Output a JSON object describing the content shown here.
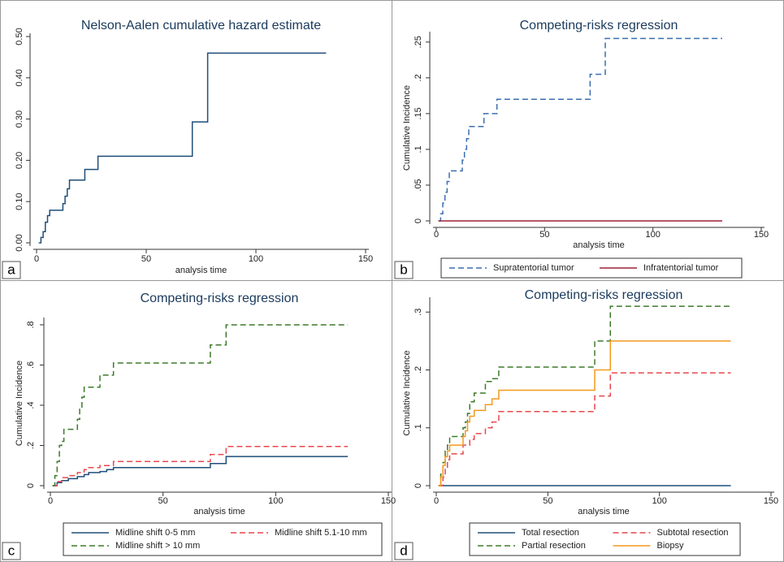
{
  "chart_data": [
    {
      "type": "line",
      "step": "post",
      "title": "Nelson-Aalen cumulative hazard estimate",
      "x_label": "analysis time",
      "panel_label": "a",
      "xlim": [
        0,
        150
      ],
      "xticks": [
        0,
        50,
        100,
        150
      ],
      "ylim": [
        0,
        0.5
      ],
      "yticks": [
        {
          "value": 0,
          "label": "0.00"
        },
        {
          "value": 0.1,
          "label": "0.10"
        },
        {
          "value": 0.2,
          "label": "0.20"
        },
        {
          "value": 0.3,
          "label": "0.30"
        },
        {
          "value": 0.4,
          "label": "0.40"
        },
        {
          "value": 0.5,
          "label": "0.50"
        }
      ],
      "legend": false,
      "series": [
        {
          "color": "#1f4e79",
          "dash": "solid",
          "x": [
            1,
            2,
            3,
            4,
            5,
            6,
            12,
            13,
            14,
            15,
            17,
            22,
            25,
            28,
            71,
            78,
            132
          ],
          "values": [
            0,
            0.013,
            0.027,
            0.05,
            0.066,
            0.079,
            0.095,
            0.113,
            0.131,
            0.152,
            0.152,
            0.178,
            0.178,
            0.21,
            0.293,
            0.46,
            0.46
          ]
        }
      ]
    },
    {
      "type": "line",
      "step": "post",
      "title": "Competing-risks regression",
      "x_label": "analysis time",
      "y_label": "Cumulative Incidence",
      "panel_label": "b",
      "xlim": [
        0,
        150
      ],
      "xticks": [
        0,
        50,
        100,
        150
      ],
      "ylim": [
        0,
        0.26
      ],
      "yticks": [
        0,
        {
          "value": 0.05,
          "label": ".05"
        },
        {
          "value": 0.1,
          "label": ".1"
        },
        {
          "value": 0.15,
          "label": ".15"
        },
        {
          "value": 0.2,
          "label": ".2"
        },
        {
          "value": 0.25,
          "label": ".25"
        }
      ],
      "legend": "bottom",
      "series": [
        {
          "name": "Supratentorial tumor",
          "color": "#3a6fb0",
          "dash": "dashed",
          "x": [
            1,
            2,
            3,
            4,
            5,
            6,
            12,
            13,
            14,
            15,
            17,
            22,
            25,
            28,
            71,
            74,
            78,
            132
          ],
          "values": [
            0,
            0.01,
            0.025,
            0.04,
            0.055,
            0.07,
            0.085,
            0.1,
            0.115,
            0.132,
            0.132,
            0.15,
            0.15,
            0.17,
            0.205,
            0.205,
            0.255,
            0.255
          ]
        },
        {
          "name": "Infratentorial tumor",
          "color": "#9b2335",
          "dash": "solid",
          "x": [
            1,
            132
          ],
          "values": [
            0,
            0
          ]
        }
      ]
    },
    {
      "type": "line",
      "step": "post",
      "title": "Competing-risks regression",
      "x_label": "analysis time",
      "y_label": "Cumulative Incidence",
      "panel_label": "c",
      "xlim": [
        0,
        150
      ],
      "xticks": [
        0,
        50,
        100,
        150
      ],
      "ylim": [
        0,
        0.82
      ],
      "yticks": [
        0,
        {
          "value": 0.2,
          "label": ".2"
        },
        {
          "value": 0.4,
          "label": ".4"
        },
        {
          "value": 0.6,
          "label": ".6"
        },
        {
          "value": 0.8,
          "label": ".8"
        }
      ],
      "legend": "bottom",
      "series": [
        {
          "name": "Midline shift 0-5 mm",
          "color": "#1f4e79",
          "dash": "solid",
          "x": [
            1,
            3,
            5,
            8,
            12,
            15,
            17,
            22,
            25,
            28,
            71,
            78,
            132
          ],
          "values": [
            0,
            0.015,
            0.025,
            0.035,
            0.045,
            0.055,
            0.065,
            0.07,
            0.08,
            0.09,
            0.11,
            0.145,
            0.145
          ]
        },
        {
          "name": "Midline shift 5.1-10 mm",
          "color": "#e8474c",
          "dash": "dashed",
          "x": [
            1,
            3,
            5,
            8,
            12,
            15,
            17,
            22,
            25,
            28,
            71,
            78,
            132
          ],
          "values": [
            0,
            0.02,
            0.04,
            0.05,
            0.065,
            0.08,
            0.09,
            0.1,
            0.1,
            0.12,
            0.155,
            0.195,
            0.195
          ]
        },
        {
          "name": "Midline shift > 10 mm",
          "color": "#3d7a2a",
          "dash": "dashed",
          "x": [
            1,
            2,
            3,
            4,
            5,
            6,
            12,
            13,
            14,
            15,
            17,
            22,
            25,
            28,
            71,
            74,
            78,
            132
          ],
          "values": [
            0,
            0.05,
            0.12,
            0.2,
            0.22,
            0.28,
            0.33,
            0.38,
            0.44,
            0.49,
            0.49,
            0.55,
            0.55,
            0.61,
            0.7,
            0.7,
            0.8,
            0.8
          ]
        }
      ]
    },
    {
      "type": "line",
      "step": "post",
      "title": "Competing-risks regression",
      "x_label": "analysis time",
      "y_label": "Cumulative Incidence",
      "panel_label": "d",
      "xlim": [
        0,
        150
      ],
      "xticks": [
        0,
        50,
        100,
        150
      ],
      "ylim": [
        0,
        0.32
      ],
      "yticks": [
        0,
        {
          "value": 0.1,
          "label": ".1"
        },
        {
          "value": 0.2,
          "label": ".2"
        },
        {
          "value": 0.3,
          "label": ".3"
        }
      ],
      "legend": "bottom",
      "series": [
        {
          "name": "Total resection",
          "color": "#1f4e79",
          "dash": "solid",
          "x": [
            1,
            132
          ],
          "values": [
            0,
            0
          ]
        },
        {
          "name": "Subtotal resection",
          "color": "#e8474c",
          "dash": "dashed",
          "x": [
            1,
            3,
            4,
            5,
            6,
            12,
            15,
            17,
            22,
            25,
            28,
            71,
            78,
            132
          ],
          "values": [
            0,
            0.015,
            0.03,
            0.045,
            0.055,
            0.07,
            0.08,
            0.09,
            0.1,
            0.11,
            0.128,
            0.155,
            0.195,
            0.195
          ]
        },
        {
          "name": "Partial resection",
          "color": "#3d7a2a",
          "dash": "dashed",
          "x": [
            1,
            2,
            3,
            4,
            5,
            6,
            12,
            13,
            14,
            15,
            17,
            22,
            25,
            28,
            71,
            78,
            132
          ],
          "values": [
            0,
            0.02,
            0.04,
            0.06,
            0.07,
            0.085,
            0.1,
            0.11,
            0.125,
            0.145,
            0.16,
            0.18,
            0.185,
            0.205,
            0.25,
            0.31,
            0.31
          ]
        },
        {
          "name": "Biopsy",
          "color": "#f39a1e",
          "dash": "solid",
          "x": [
            1,
            2,
            3,
            4,
            5,
            6,
            12,
            13,
            14,
            15,
            17,
            22,
            25,
            28,
            71,
            78,
            132
          ],
          "values": [
            0,
            0.015,
            0.035,
            0.05,
            0.06,
            0.07,
            0.085,
            0.095,
            0.11,
            0.12,
            0.13,
            0.14,
            0.15,
            0.165,
            0.2,
            0.25,
            0.25
          ]
        }
      ]
    }
  ]
}
